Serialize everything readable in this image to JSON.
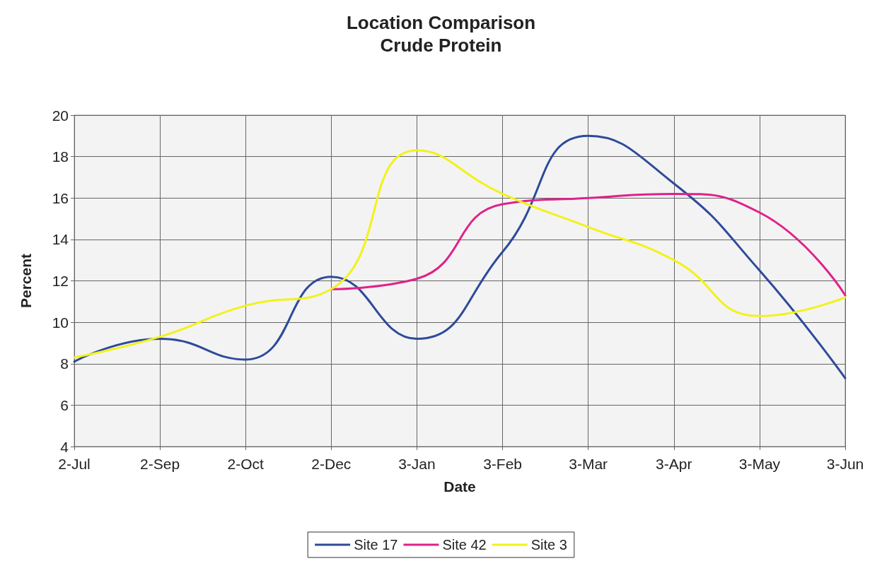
{
  "chart_data": {
    "type": "line",
    "title": "Location Comparison",
    "subtitle": "Crude Protein",
    "xlabel": "Date",
    "ylabel": "Percent",
    "categories": [
      "2-Jul",
      "2-Sep",
      "2-Oct",
      "2-Dec",
      "3-Jan",
      "3-Feb",
      "3-Mar",
      "3-Apr",
      "3-May",
      "3-Jun"
    ],
    "series": [
      {
        "name": "Site 17",
        "color": "#2e4a9a",
        "values": [
          8.1,
          9.2,
          8.2,
          12.2,
          9.2,
          13.4,
          19.0,
          16.7,
          12.5,
          7.3
        ]
      },
      {
        "name": "Site 42",
        "color": "#e0218a",
        "values": [
          null,
          null,
          null,
          11.6,
          12.1,
          15.7,
          16.0,
          16.2,
          15.3,
          11.3
        ]
      },
      {
        "name": "Site 3",
        "color": "#f2f21a",
        "values": [
          8.3,
          9.3,
          10.8,
          11.6,
          18.3,
          16.2,
          14.6,
          13.0,
          10.3,
          11.2
        ]
      }
    ],
    "ylim": [
      4,
      20
    ],
    "yticks": [
      4,
      6,
      8,
      10,
      12,
      14,
      16,
      18,
      20
    ],
    "grid": true,
    "legend": "bottom"
  }
}
